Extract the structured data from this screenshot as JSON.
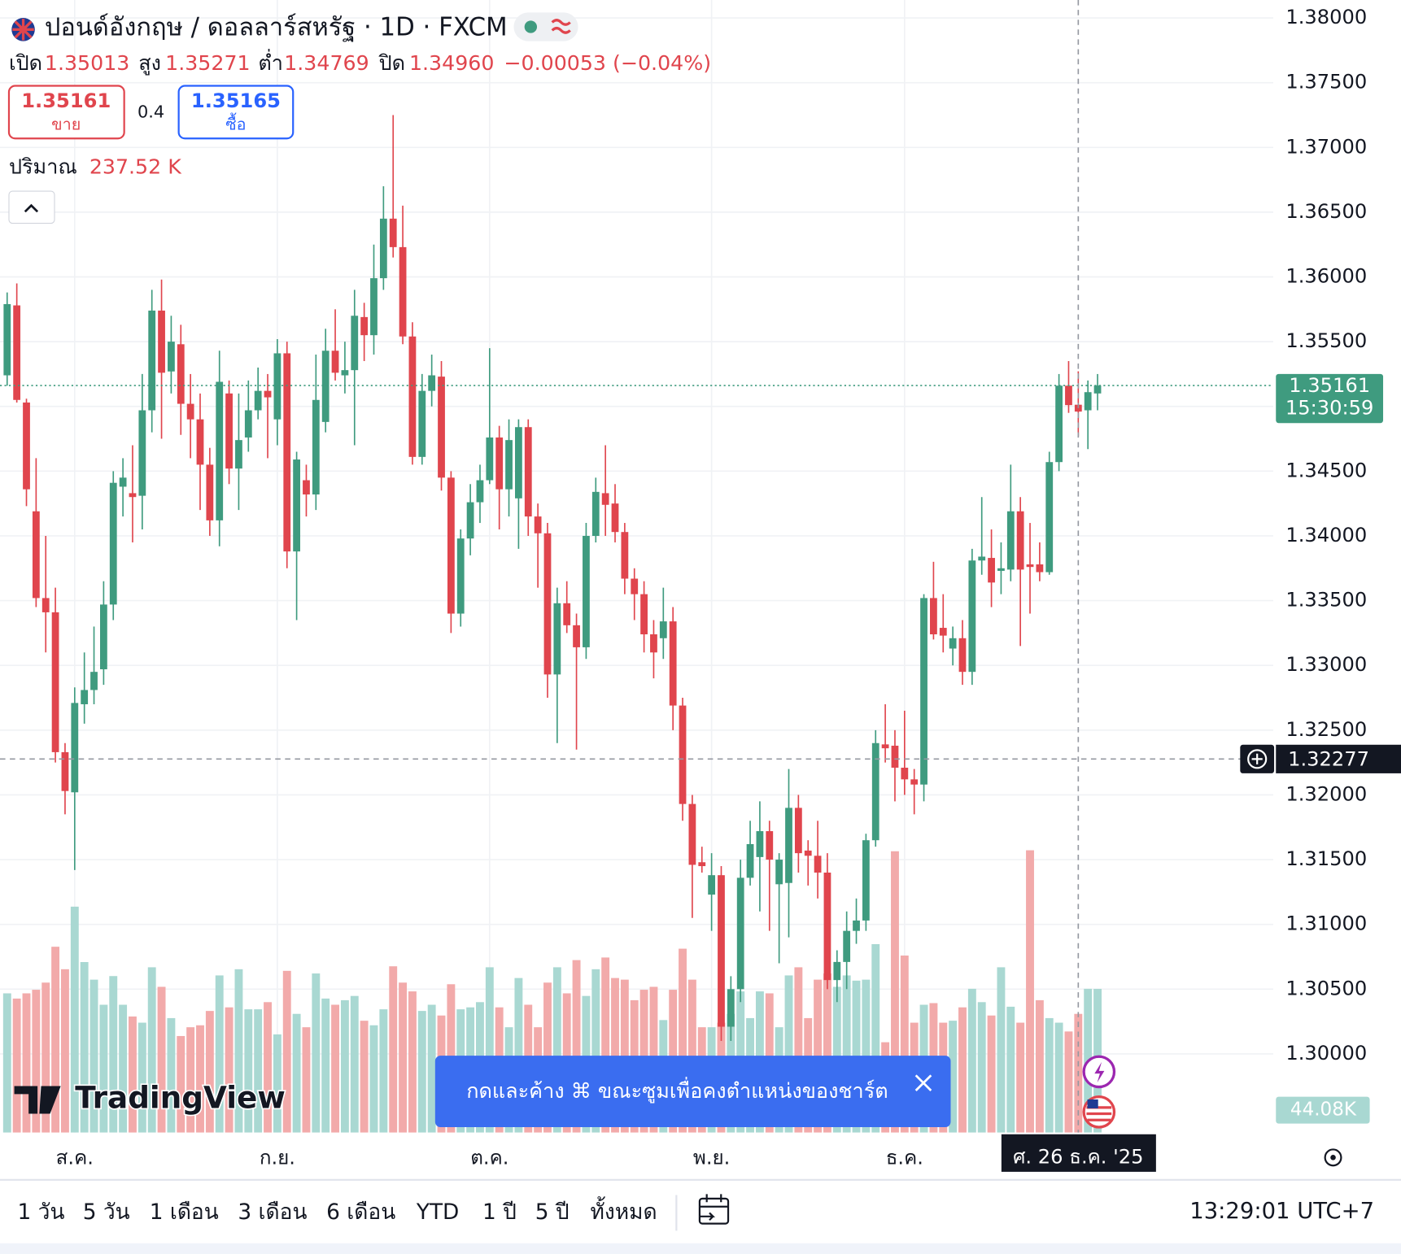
{
  "header": {
    "title": "ปอนด์อังกฤษ / ดอลลาร์สหรัฐ · 1D · FXCM",
    "ohlc": [
      {
        "label": "เปิด",
        "value": "1.35013"
      },
      {
        "label": "สูง",
        "value": "1.35271"
      },
      {
        "label": "ต่ำ",
        "value": "1.34769"
      },
      {
        "label": "ปิด",
        "value": "1.34960"
      }
    ],
    "change": "−0.00053 (−0.04%)",
    "sell": {
      "price": "1.35161",
      "label": "ขาย"
    },
    "spread": "0.4",
    "buy": {
      "price": "1.35165",
      "label": "ซื้อ"
    },
    "volume_label": "ปริมาณ",
    "volume_value": "237.52 K"
  },
  "chart_data": {
    "type": "candlestick",
    "categories": [
      null,
      null,
      null,
      null,
      null,
      null,
      null,
      "ส.ค.",
      null,
      null,
      null,
      null,
      null,
      null,
      null,
      null,
      null,
      null,
      null,
      null,
      null,
      null,
      null,
      null,
      null,
      null,
      null,
      null,
      "ก.ย.",
      null,
      null,
      null,
      null,
      null,
      null,
      null,
      null,
      null,
      null,
      null,
      null,
      null,
      null,
      null,
      null,
      null,
      null,
      null,
      null,
      null,
      "ต.ค.",
      null,
      null,
      null,
      null,
      null,
      null,
      null,
      null,
      null,
      null,
      null,
      null,
      null,
      null,
      null,
      null,
      null,
      null,
      null,
      null,
      null,
      null,
      "พ.ย.",
      null,
      null,
      null,
      null,
      null,
      null,
      null,
      null,
      null,
      null,
      null,
      null,
      null,
      null,
      null,
      null,
      null,
      null,
      null,
      "ธ.ค.",
      null,
      null,
      null,
      null,
      null,
      null,
      null,
      null,
      null,
      null,
      null,
      null,
      null,
      null,
      null,
      null,
      null,
      null,
      null,
      null
    ],
    "open": [
      1.3524,
      1.3578,
      1.3503,
      1.3419,
      1.3352,
      1.3341,
      1.3233,
      1.3202,
      1.327,
      1.3281,
      1.3297,
      1.3347,
      1.3438,
      1.3433,
      1.3431,
      1.3497,
      1.3574,
      1.3527,
      1.3548,
      1.3502,
      1.349,
      1.3455,
      1.3412,
      1.351,
      1.3452,
      1.3476,
      1.3497,
      1.3512,
      1.349,
      1.3541,
      1.3388,
      1.3443,
      1.3432,
      1.3488,
      1.3543,
      1.3524,
      1.3528,
      1.3569,
      1.3555,
      1.3599,
      1.3645,
      1.3623,
      1.3554,
      1.3461,
      1.3512,
      1.3523,
      1.3445,
      1.334,
      1.3398,
      1.3426,
      1.3443,
      1.3476,
      1.3436,
      1.3429,
      1.3484,
      1.3415,
      1.3402,
      1.3293,
      1.3348,
      1.3331,
      1.3314,
      1.34,
      1.3433,
      1.3425,
      1.3403,
      1.3367,
      1.3355,
      1.3324,
      1.3321,
      1.3334,
      1.3269,
      1.3193,
      1.3148,
      1.3123,
      1.3138,
      1.3021,
      1.305,
      1.3136,
      1.3152,
      1.3172,
      1.3131,
      1.3132,
      1.319,
      1.3157,
      1.3153,
      1.314,
      1.3057,
      1.3071,
      1.3095,
      1.3103,
      1.3165,
      1.3239,
      1.3238,
      1.3221,
      1.3212,
      1.3208,
      1.3352,
      1.3329,
      1.3313,
      1.3321,
      1.3295,
      1.3381,
      1.3383,
      1.3373,
      1.3374,
      1.3419,
      1.3378,
      1.3378,
      1.3372,
      1.3457,
      1.3516,
      1.35013,
      1.3497,
      1.351
    ],
    "high": [
      1.3588,
      1.3595,
      1.3506,
      1.346,
      1.34,
      1.336,
      1.324,
      1.3283,
      1.331,
      1.333,
      1.3365,
      1.345,
      1.346,
      1.347,
      1.3525,
      1.359,
      1.3598,
      1.357,
      1.3563,
      1.3525,
      1.351,
      1.3468,
      1.3543,
      1.352,
      1.351,
      1.352,
      1.353,
      1.3525,
      1.3552,
      1.355,
      1.3465,
      1.3455,
      1.354,
      1.356,
      1.3575,
      1.355,
      1.359,
      1.358,
      1.3625,
      1.367,
      1.3725,
      1.3655,
      1.3565,
      1.3525,
      1.354,
      1.3535,
      1.345,
      1.3405,
      1.344,
      1.3455,
      1.3545,
      1.3485,
      1.349,
      1.349,
      1.349,
      1.3425,
      1.341,
      1.336,
      1.3365,
      1.334,
      1.341,
      1.3445,
      1.347,
      1.344,
      1.341,
      1.3375,
      1.3365,
      1.3335,
      1.336,
      1.3345,
      1.3275,
      1.32,
      1.316,
      1.3155,
      1.3145,
      1.306,
      1.315,
      1.318,
      1.3195,
      1.318,
      1.3155,
      1.322,
      1.32,
      1.3165,
      1.318,
      1.3155,
      1.308,
      1.311,
      1.312,
      1.317,
      1.325,
      1.327,
      1.325,
      1.3265,
      1.322,
      1.3355,
      1.338,
      1.3355,
      1.333,
      1.3335,
      1.339,
      1.343,
      1.3405,
      1.3395,
      1.3455,
      1.343,
      1.341,
      1.3395,
      1.3465,
      1.3525,
      1.3535,
      1.35271,
      1.352,
      1.3525
    ],
    "low": [
      1.3516,
      1.3503,
      1.3423,
      1.3345,
      1.331,
      1.3225,
      1.3185,
      1.3142,
      1.3255,
      1.327,
      1.3285,
      1.3335,
      1.3415,
      1.3395,
      1.3405,
      1.348,
      1.3475,
      1.351,
      1.3478,
      1.346,
      1.342,
      1.34,
      1.3392,
      1.344,
      1.342,
      1.3465,
      1.349,
      1.346,
      1.347,
      1.3375,
      1.3335,
      1.3415,
      1.342,
      1.348,
      1.352,
      1.351,
      1.347,
      1.3535,
      1.354,
      1.359,
      1.3615,
      1.3548,
      1.3455,
      1.3455,
      1.35,
      1.3435,
      1.3325,
      1.333,
      1.3385,
      1.341,
      1.344,
      1.3405,
      1.3415,
      1.339,
      1.34,
      1.336,
      1.3275,
      1.324,
      1.3325,
      1.3235,
      1.3305,
      1.3395,
      1.34,
      1.3395,
      1.3355,
      1.3335,
      1.331,
      1.329,
      1.3305,
      1.325,
      1.318,
      1.3105,
      1.314,
      1.3095,
      1.301,
      1.301,
      1.304,
      1.313,
      1.311,
      1.3095,
      1.307,
      1.309,
      1.314,
      1.313,
      1.312,
      1.305,
      1.304,
      1.305,
      1.3085,
      1.3095,
      1.316,
      1.3225,
      1.3195,
      1.32,
      1.3185,
      1.3195,
      1.332,
      1.331,
      1.33,
      1.3285,
      1.3285,
      1.337,
      1.3345,
      1.3355,
      1.3365,
      1.3315,
      1.334,
      1.3365,
      1.337,
      1.345,
      1.3495,
      1.34769,
      1.3467,
      1.3497
    ],
    "close": [
      1.3579,
      1.3505,
      1.3436,
      1.3352,
      1.3341,
      1.3233,
      1.3203,
      1.3271,
      1.3281,
      1.3295,
      1.3347,
      1.3441,
      1.3445,
      1.343,
      1.3497,
      1.3574,
      1.3526,
      1.355,
      1.3502,
      1.349,
      1.3455,
      1.3412,
      1.3519,
      1.3452,
      1.3474,
      1.3497,
      1.3512,
      1.3507,
      1.3541,
      1.3388,
      1.3459,
      1.3432,
      1.3505,
      1.3543,
      1.3526,
      1.3528,
      1.357,
      1.3555,
      1.3599,
      1.3645,
      1.3623,
      1.3554,
      1.3461,
      1.3512,
      1.3524,
      1.3445,
      1.334,
      1.3398,
      1.3426,
      1.3443,
      1.3476,
      1.3436,
      1.3474,
      1.3484,
      1.3415,
      1.3402,
      1.3293,
      1.3348,
      1.3331,
      1.3314,
      1.34,
      1.3434,
      1.3424,
      1.3403,
      1.3367,
      1.3355,
      1.3324,
      1.331,
      1.3334,
      1.3269,
      1.3193,
      1.3146,
      1.3145,
      1.3138,
      1.3021,
      1.305,
      1.3136,
      1.3162,
      1.3172,
      1.315,
      1.315,
      1.319,
      1.3155,
      1.3153,
      1.314,
      1.3057,
      1.3071,
      1.3095,
      1.3103,
      1.3165,
      1.324,
      1.3236,
      1.3221,
      1.3212,
      1.3208,
      1.3352,
      1.3324,
      1.3323,
      1.3321,
      1.3295,
      1.3381,
      1.3384,
      1.3364,
      1.3375,
      1.3419,
      1.3374,
      1.3376,
      1.3372,
      1.3457,
      1.3516,
      1.3501,
      1.3496,
      1.3511,
      1.35161
    ],
    "volume": [
      42.7,
      41.1,
      42.7,
      43.8,
      46.0,
      57.0,
      50.1,
      69.3,
      52.3,
      46.9,
      39.2,
      48.0,
      39.2,
      35.6,
      33.7,
      50.7,
      44.7,
      35.1,
      29.6,
      32.3,
      32.9,
      37.3,
      48.2,
      38.4,
      50.1,
      37.8,
      37.8,
      40.0,
      30.1,
      49.6,
      36.4,
      32.3,
      48.8,
      41.1,
      39.2,
      40.6,
      41.9,
      34.3,
      32.9,
      37.8,
      51.0,
      46.0,
      43.3,
      37.3,
      39.2,
      35.9,
      45.5,
      37.8,
      38.4,
      40.0,
      50.7,
      38.4,
      32.3,
      47.4,
      39.2,
      32.3,
      46.0,
      50.7,
      42.7,
      52.9,
      41.9,
      50.1,
      53.7,
      47.4,
      46.9,
      40.6,
      43.8,
      44.7,
      34.5,
      43.8,
      56.4,
      46.9,
      32.3,
      32.3,
      33.7,
      36.4,
      43.3,
      35.1,
      43.3,
      42.7,
      32.3,
      48.2,
      50.7,
      35.1,
      46.9,
      48.8,
      44.7,
      48.2,
      46.6,
      46.9,
      57.8,
      27.7,
      86.3,
      54.3,
      33.7,
      39.2,
      39.7,
      33.7,
      34.3,
      38.4,
      44.1,
      40.0,
      35.9,
      50.7,
      38.6,
      33.7,
      86.6,
      40.6,
      35.1,
      33.7,
      31.0,
      36.4,
      44.1,
      44.08
    ],
    "volume_last_label": "44.08K",
    "up_color": "#3f9b7f",
    "down_color": "#e0454d",
    "volume_up_color": "#a9d8d2",
    "volume_down_color": "#f2aaaa",
    "ylim": [
      1.29393,
      1.38138
    ],
    "yticks": [
      {
        "value": 1.38,
        "label": "1.38000"
      },
      {
        "value": 1.375,
        "label": "1.37500"
      },
      {
        "value": 1.37,
        "label": "1.37000"
      },
      {
        "value": 1.365,
        "label": "1.36500"
      },
      {
        "value": 1.36,
        "label": "1.36000"
      },
      {
        "value": 1.355,
        "label": "1.35500"
      },
      {
        "value": 1.35,
        "label": "1.35000"
      },
      {
        "value": 1.345,
        "label": "1.34500"
      },
      {
        "value": 1.34,
        "label": "1.34000"
      },
      {
        "value": 1.335,
        "label": "1.33500"
      },
      {
        "value": 1.33,
        "label": "1.33000"
      },
      {
        "value": 1.325,
        "label": "1.32500"
      },
      {
        "value": 1.32,
        "label": "1.32000"
      },
      {
        "value": 1.315,
        "label": "1.31500"
      },
      {
        "value": 1.31,
        "label": "1.31000"
      },
      {
        "value": 1.305,
        "label": "1.30500"
      },
      {
        "value": 1.3,
        "label": "1.30000"
      }
    ],
    "grid": true,
    "countdown": "15:30:59",
    "crosshair_price": 1.32277,
    "crosshair_date": "ศ. 26 ธ.ค. '25"
  },
  "logo": "TradingView",
  "toast": "กดและค้าง ⌘ ขณะซูมเพื่อคงตำแหน่งของชาร์ต",
  "toolbar": {
    "ranges": [
      "1 วัน",
      "5 วัน",
      "1 เดือน",
      "3 เดือน",
      "6 เดือน",
      "YTD",
      "1 ปี",
      "5 ปี",
      "ทั้งหมด"
    ],
    "clock": "13:29:01 UTC+7"
  }
}
